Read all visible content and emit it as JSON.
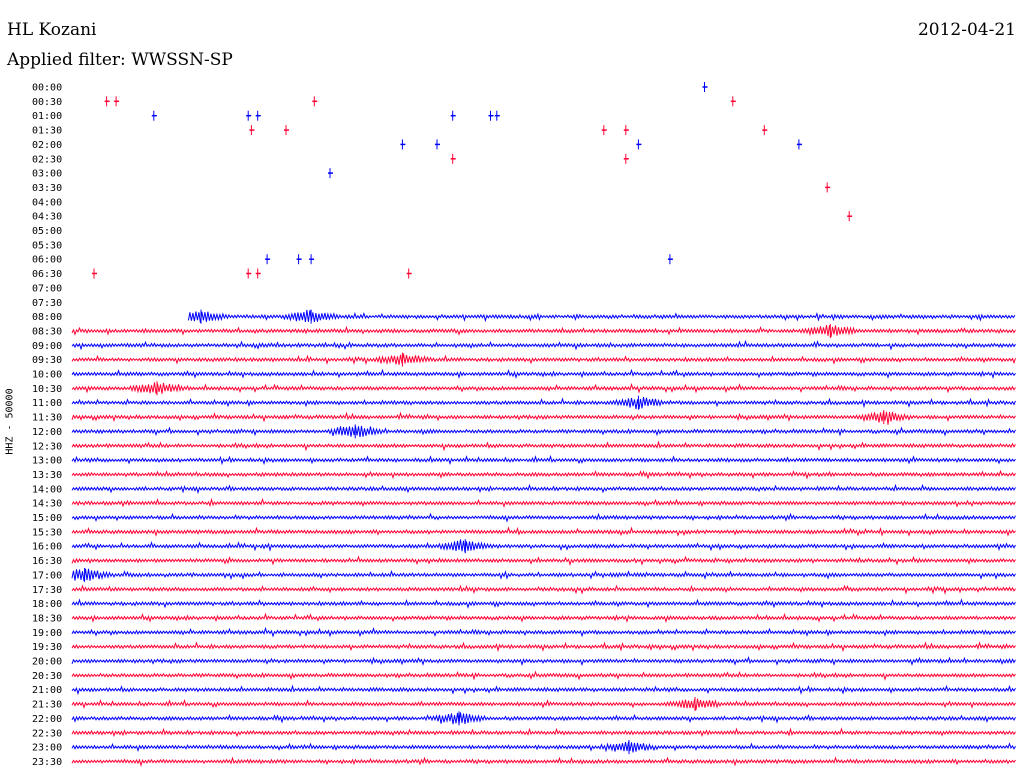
{
  "header": {
    "station": "HL Kozani",
    "date": "2012-04-21",
    "filter": "Applied filter: WWSSN-SP"
  },
  "ylabel": "HHZ - 50000",
  "chart_data": {
    "type": "line",
    "title": "HL Kozani",
    "subtitle": "Applied filter: WWSSN-SP",
    "date": "2012-04-21",
    "ylabel": "HHZ - 50000",
    "colors": [
      "#0000ff",
      "#ff0033"
    ],
    "trace_rows": [
      "00:00",
      "00:30",
      "01:00",
      "01:30",
      "02:00",
      "02:30",
      "03:00",
      "03:30",
      "04:00",
      "04:30",
      "05:00",
      "05:30",
      "06:00",
      "06:30",
      "07:00",
      "07:30",
      "08:00",
      "08:30",
      "09:00",
      "09:30",
      "10:00",
      "10:30",
      "11:00",
      "11:30",
      "12:00",
      "12:30",
      "13:00",
      "13:30",
      "14:00",
      "14:30",
      "15:00",
      "15:30",
      "16:00",
      "16:30",
      "17:00",
      "17:30",
      "18:00",
      "18:30",
      "19:00",
      "19:30",
      "20:00",
      "20:30",
      "21:00",
      "21:30",
      "22:00",
      "22:30",
      "23:00",
      "23:30"
    ],
    "x_minutes": [
      0,
      30
    ],
    "continuous_from": "08:00",
    "sparse_blips": [
      {
        "row": "00:00",
        "minute": 20.1
      },
      {
        "row": "00:30",
        "minute": 1.1
      },
      {
        "row": "00:30",
        "minute": 1.4
      },
      {
        "row": "00:30",
        "minute": 7.7
      },
      {
        "row": "00:30",
        "minute": 21.0
      },
      {
        "row": "01:00",
        "minute": 2.6
      },
      {
        "row": "01:00",
        "minute": 5.6
      },
      {
        "row": "01:00",
        "minute": 5.9
      },
      {
        "row": "01:00",
        "minute": 12.1
      },
      {
        "row": "01:00",
        "minute": 13.3
      },
      {
        "row": "01:00",
        "minute": 13.5
      },
      {
        "row": "01:30",
        "minute": 5.7
      },
      {
        "row": "01:30",
        "minute": 6.8
      },
      {
        "row": "01:30",
        "minute": 16.9
      },
      {
        "row": "01:30",
        "minute": 17.6
      },
      {
        "row": "01:30",
        "minute": 22.0
      },
      {
        "row": "02:00",
        "minute": 10.5
      },
      {
        "row": "02:00",
        "minute": 11.6
      },
      {
        "row": "02:00",
        "minute": 18.0
      },
      {
        "row": "02:00",
        "minute": 23.1
      },
      {
        "row": "02:30",
        "minute": 12.1
      },
      {
        "row": "02:30",
        "minute": 17.6
      },
      {
        "row": "03:00",
        "minute": 8.2
      },
      {
        "row": "03:30",
        "minute": 24.0
      },
      {
        "row": "04:30",
        "minute": 24.7
      },
      {
        "row": "06:00",
        "minute": 6.2
      },
      {
        "row": "06:00",
        "minute": 7.2
      },
      {
        "row": "06:00",
        "minute": 7.6
      },
      {
        "row": "06:00",
        "minute": 19.0
      },
      {
        "row": "06:30",
        "minute": 0.7
      },
      {
        "row": "06:30",
        "minute": 5.6
      },
      {
        "row": "06:30",
        "minute": 5.9
      },
      {
        "row": "06:30",
        "minute": 10.7
      }
    ],
    "events": [
      {
        "row": "08:00",
        "minute": 4.1
      },
      {
        "row": "08:00",
        "minute": 7.6
      },
      {
        "row": "08:30",
        "minute": 24.1
      },
      {
        "row": "09:30",
        "minute": 10.5
      },
      {
        "row": "10:30",
        "minute": 2.7
      },
      {
        "row": "11:00",
        "minute": 18.0
      },
      {
        "row": "11:30",
        "minute": 25.8
      },
      {
        "row": "12:00",
        "minute": 9.0
      },
      {
        "row": "16:00",
        "minute": 12.5
      },
      {
        "row": "17:00",
        "minute": 0.4
      },
      {
        "row": "21:30",
        "minute": 19.8
      },
      {
        "row": "22:00",
        "minute": 12.3
      },
      {
        "row": "23:00",
        "minute": 17.7
      }
    ]
  }
}
